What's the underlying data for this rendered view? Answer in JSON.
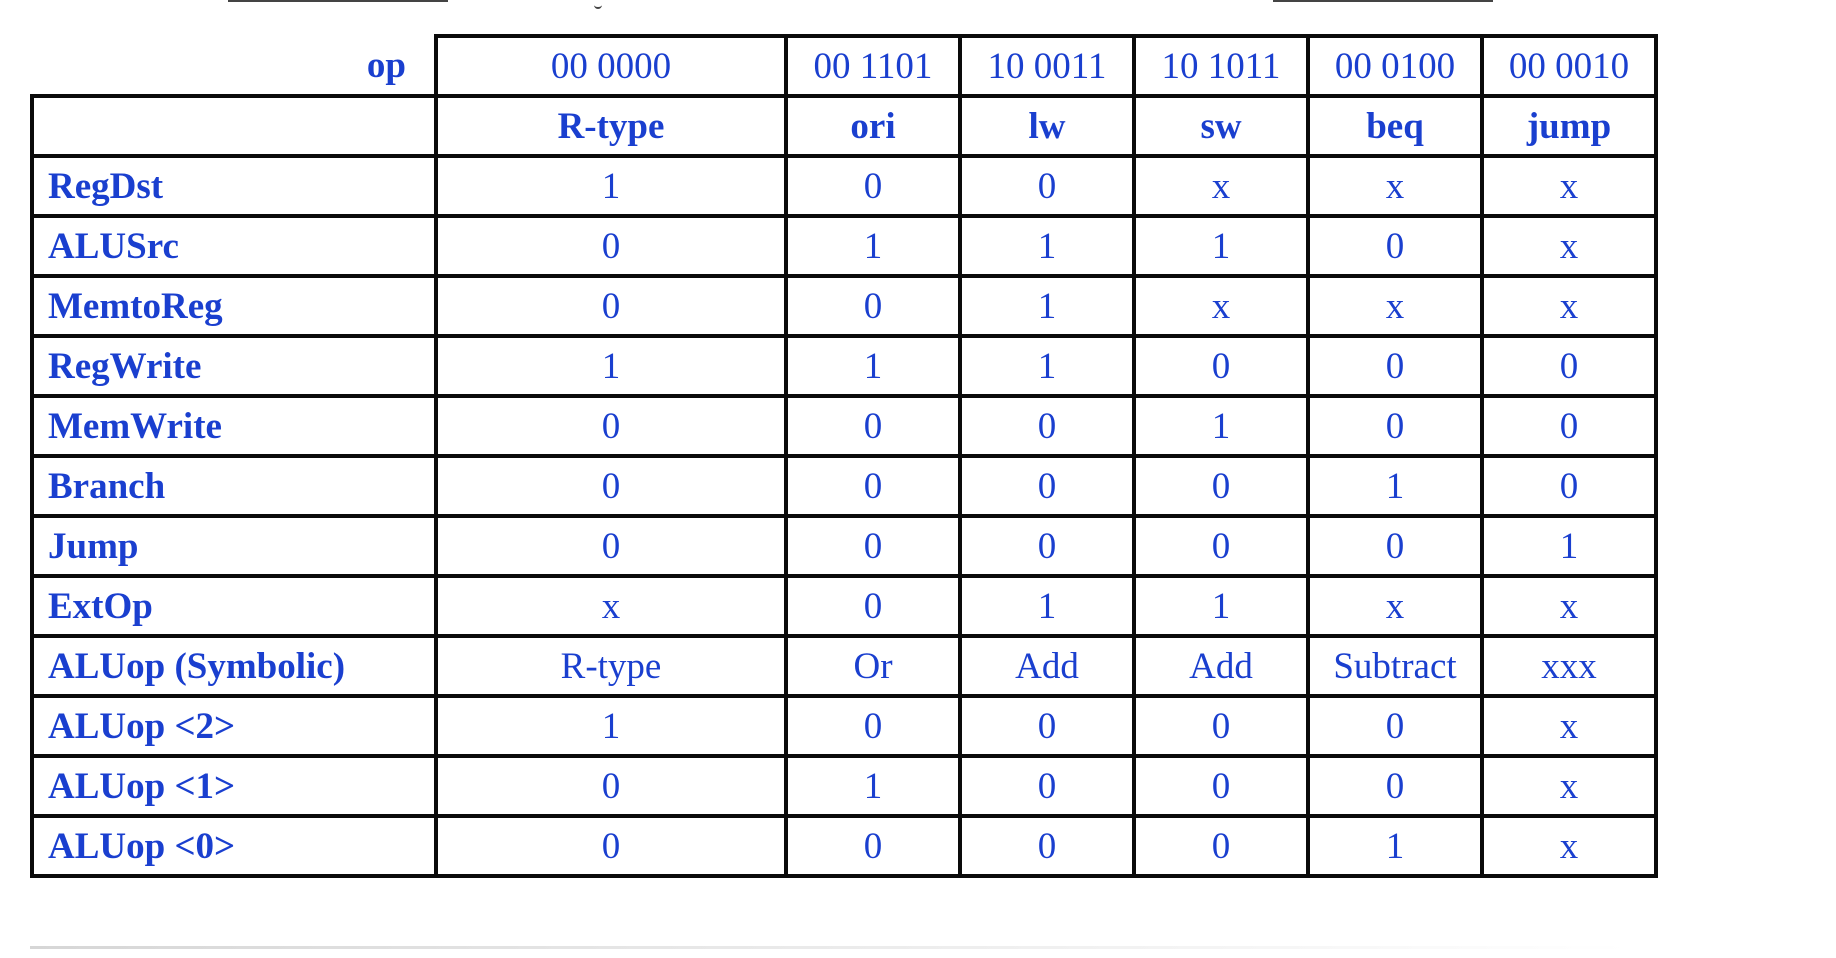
{
  "table": {
    "op_label": "op",
    "opcodes": [
      "00 0000",
      "00 1101",
      "10 0011",
      "10 1011",
      "00 0100",
      "00 0010"
    ],
    "instructions": [
      "R-type",
      "ori",
      "lw",
      "sw",
      "beq",
      "jump"
    ],
    "rows": [
      {
        "signal": "RegDst",
        "values": [
          "1",
          "0",
          "0",
          "x",
          "x",
          "x"
        ]
      },
      {
        "signal": "ALUSrc",
        "values": [
          "0",
          "1",
          "1",
          "1",
          "0",
          "x"
        ]
      },
      {
        "signal": "MemtoReg",
        "values": [
          "0",
          "0",
          "1",
          "x",
          "x",
          "x"
        ]
      },
      {
        "signal": "RegWrite",
        "values": [
          "1",
          "1",
          "1",
          "0",
          "0",
          "0"
        ]
      },
      {
        "signal": "MemWrite",
        "values": [
          "0",
          "0",
          "0",
          "1",
          "0",
          "0"
        ]
      },
      {
        "signal": "Branch",
        "values": [
          "0",
          "0",
          "0",
          "0",
          "1",
          "0"
        ]
      },
      {
        "signal": "Jump",
        "values": [
          "0",
          "0",
          "0",
          "0",
          "0",
          "1"
        ]
      },
      {
        "signal": "ExtOp",
        "values": [
          "x",
          "0",
          "1",
          "1",
          "x",
          "x"
        ]
      },
      {
        "signal": "ALUop (Symbolic)",
        "values": [
          "R-type",
          "Or",
          "Add",
          "Add",
          "Subtract",
          "xxx"
        ]
      },
      {
        "signal": "ALUop <2>",
        "values": [
          "1",
          "0",
          "0",
          "0",
          "0",
          "x"
        ]
      },
      {
        "signal": "ALUop <1>",
        "values": [
          "0",
          "1",
          "0",
          "0",
          "0",
          "x"
        ]
      },
      {
        "signal": "ALUop <0>",
        "values": [
          "0",
          "0",
          "0",
          "0",
          "1",
          "x"
        ]
      }
    ]
  },
  "colors": {
    "text": "#1a3fcf",
    "border": "#0a0a0a",
    "background": "#ffffff"
  }
}
